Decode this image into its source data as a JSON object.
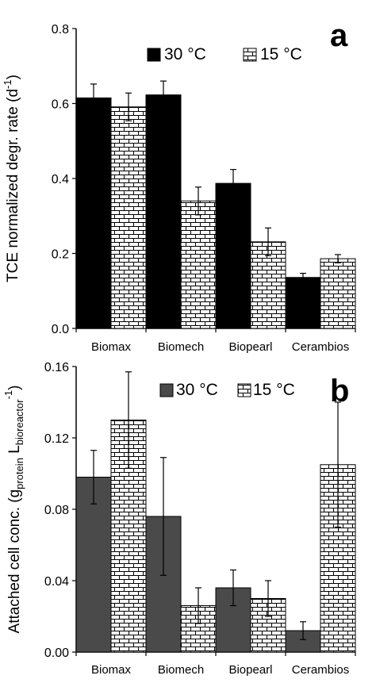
{
  "chart_data": [
    {
      "type": "bar",
      "panel_label": "a",
      "categories": [
        "Biomax",
        "Biomech",
        "Biopearl",
        "Cerambios"
      ],
      "series": [
        {
          "name": "30 °C",
          "values": [
            0.615,
            0.623,
            0.387,
            0.136
          ],
          "errors": [
            0.037,
            0.037,
            0.037,
            0.011
          ],
          "color": "#000000",
          "pattern": "solid"
        },
        {
          "name": "15 °C",
          "values": [
            0.591,
            0.34,
            0.231,
            0.186
          ],
          "errors": [
            0.037,
            0.037,
            0.037,
            0.011
          ],
          "color": "#ffffff",
          "pattern": "brick"
        }
      ],
      "ylabel": "TCE normalized degr. rate (d",
      "ylabel_sup": "-1",
      "ylabel_end": ")",
      "yticks": [
        "0.0",
        "0.2",
        "0.4",
        "0.6",
        "0.8"
      ],
      "ylim": [
        0,
        0.8
      ],
      "legend_position": "top-center",
      "grid": false
    },
    {
      "type": "bar",
      "panel_label": "b",
      "categories": [
        "Biomax",
        "Biomech",
        "Biopearl",
        "Cerambios"
      ],
      "series": [
        {
          "name": "30 °C",
          "values": [
            0.098,
            0.076,
            0.036,
            0.012
          ],
          "errors": [
            0.015,
            0.033,
            0.01,
            0.005
          ],
          "color": "#4a4a4a",
          "pattern": "solid"
        },
        {
          "name": "15 °C",
          "values": [
            0.13,
            0.026,
            0.03,
            0.105
          ],
          "errors": [
            0.027,
            0.01,
            0.01,
            0.035
          ],
          "color": "#ffffff",
          "pattern": "brick"
        }
      ],
      "ylabel": "Attached cell conc. (g",
      "ylabel_sub1": "protein",
      "ylabel_mid": " L",
      "ylabel_sub2": "bioreactor",
      "ylabel_sup": "-1",
      "ylabel_end": ")",
      "yticks": [
        "0.00",
        "0.04",
        "0.08",
        "0.12",
        "0.16"
      ],
      "ylim": [
        0,
        0.16
      ],
      "legend_position": "top-center",
      "grid": false
    }
  ]
}
